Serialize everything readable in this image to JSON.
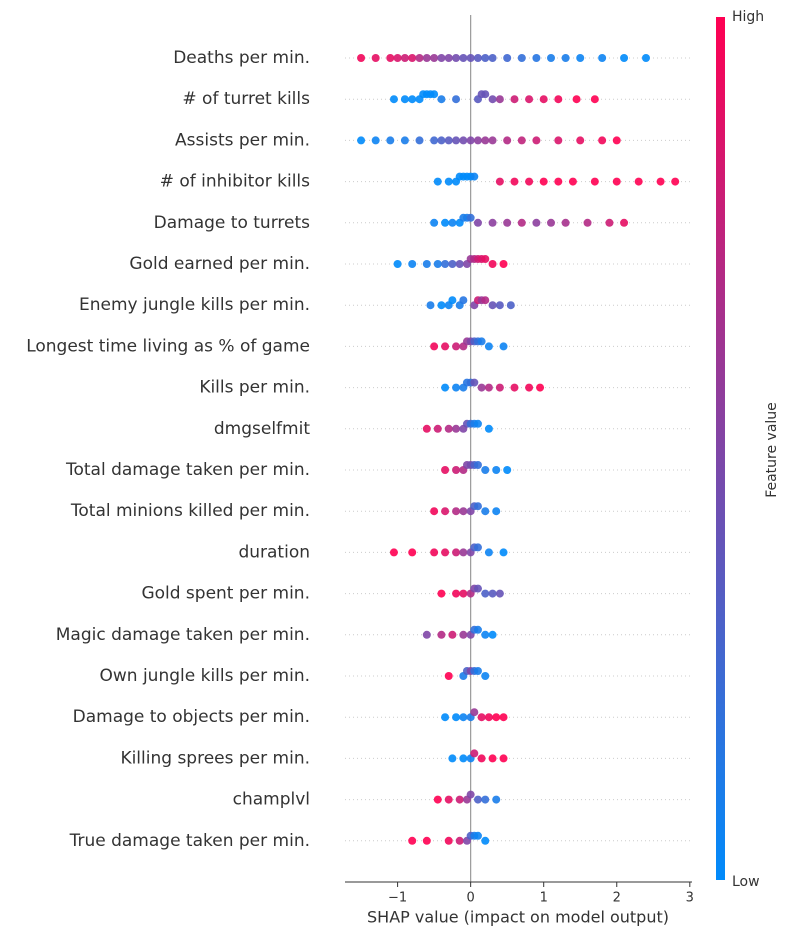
{
  "chart_data": {
    "type": "beeswarm",
    "xlabel": "SHAP value (impact on model output)",
    "colorbar": {
      "label": "Feature value",
      "high": "High",
      "low": "Low",
      "colors": [
        "#008bfb",
        "#ff0052"
      ]
    },
    "xlim": [
      -1.72,
      3.03
    ],
    "xticks": [
      {
        "value": -1,
        "label": "−1"
      },
      0,
      1,
      2,
      3
    ],
    "grid": true,
    "categories": [
      "Deaths per min.",
      "# of turret kills",
      "Assists per min.",
      "# of inhibitor kills",
      "Damage to turrets",
      "Gold earned per min.",
      "Enemy jungle kills per min.",
      "Longest time living as % of game",
      "Kills per min.",
      "dmgselfmit",
      "Total damage taken per min.",
      "Total minions killed per min.",
      "duration",
      "Gold spent per min.",
      "Magic damage taken per min.",
      "Own jungle kills per min.",
      "Damage to objects per min.",
      "Killing sprees per min.",
      "champlvl",
      "True damage taken per min."
    ],
    "points": [
      [
        [
          -1.5,
          0.95
        ],
        [
          -1.3,
          0.9
        ],
        [
          -1.1,
          0.9
        ],
        [
          -1.0,
          0.85
        ],
        [
          -0.9,
          0.8
        ],
        [
          -0.8,
          0.85
        ],
        [
          -0.7,
          0.7
        ],
        [
          -0.6,
          0.6
        ],
        [
          -0.5,
          0.6
        ],
        [
          -0.4,
          0.5
        ],
        [
          -0.3,
          0.5
        ],
        [
          -0.2,
          0.45
        ],
        [
          -0.1,
          0.4
        ],
        [
          0.0,
          0.4
        ],
        [
          0.1,
          0.35
        ],
        [
          0.2,
          0.3
        ],
        [
          0.3,
          0.3
        ],
        [
          0.5,
          0.25
        ],
        [
          0.7,
          0.2
        ],
        [
          0.9,
          0.15
        ],
        [
          1.1,
          0.1
        ],
        [
          1.3,
          0.1
        ],
        [
          1.5,
          0.05
        ],
        [
          1.8,
          0.05
        ],
        [
          2.1,
          0
        ],
        [
          2.4,
          0
        ]
      ],
      [
        [
          -1.05,
          0
        ],
        [
          -0.9,
          0
        ],
        [
          -0.8,
          0
        ],
        [
          -0.7,
          0
        ],
        [
          -0.65,
          0
        ],
        [
          -0.6,
          0
        ],
        [
          -0.55,
          0
        ],
        [
          -0.5,
          0
        ],
        [
          -0.4,
          0.1
        ],
        [
          -0.2,
          0.2
        ],
        [
          0.1,
          0.35
        ],
        [
          0.15,
          0.4
        ],
        [
          0.2,
          0.4
        ],
        [
          0.3,
          0.45
        ],
        [
          0.4,
          0.6
        ],
        [
          0.6,
          0.8
        ],
        [
          0.8,
          0.85
        ],
        [
          1.0,
          0.9
        ],
        [
          1.2,
          0.95
        ],
        [
          1.45,
          1
        ],
        [
          1.7,
          1
        ]
      ],
      [
        [
          -1.5,
          0
        ],
        [
          -1.3,
          0.05
        ],
        [
          -1.1,
          0.1
        ],
        [
          -0.9,
          0.1
        ],
        [
          -0.7,
          0.2
        ],
        [
          -0.5,
          0.25
        ],
        [
          -0.4,
          0.3
        ],
        [
          -0.3,
          0.35
        ],
        [
          -0.2,
          0.4
        ],
        [
          -0.1,
          0.45
        ],
        [
          0,
          0.5
        ],
        [
          0.1,
          0.55
        ],
        [
          0.2,
          0.6
        ],
        [
          0.3,
          0.6
        ],
        [
          0.5,
          0.7
        ],
        [
          0.7,
          0.75
        ],
        [
          0.9,
          0.8
        ],
        [
          1.2,
          0.85
        ],
        [
          1.5,
          0.9
        ],
        [
          1.8,
          0.95
        ],
        [
          2.0,
          1
        ]
      ],
      [
        [
          -0.45,
          0
        ],
        [
          -0.3,
          0
        ],
        [
          -0.2,
          0
        ],
        [
          -0.15,
          0
        ],
        [
          -0.1,
          0
        ],
        [
          -0.05,
          0
        ],
        [
          0,
          0
        ],
        [
          0.05,
          0.05
        ],
        [
          0.4,
          0.9
        ],
        [
          0.6,
          0.95
        ],
        [
          0.8,
          0.95
        ],
        [
          1.0,
          1
        ],
        [
          1.2,
          1
        ],
        [
          1.4,
          1
        ],
        [
          1.7,
          1
        ],
        [
          2.0,
          1
        ],
        [
          2.3,
          1
        ],
        [
          2.6,
          1
        ],
        [
          2.8,
          1
        ]
      ],
      [
        [
          -0.5,
          0.05
        ],
        [
          -0.35,
          0
        ],
        [
          -0.25,
          0.05
        ],
        [
          -0.15,
          0
        ],
        [
          -0.1,
          0.1
        ],
        [
          -0.05,
          0.1
        ],
        [
          0,
          0.2
        ],
        [
          0.1,
          0.5
        ],
        [
          0.3,
          0.55
        ],
        [
          0.5,
          0.6
        ],
        [
          0.7,
          0.7
        ],
        [
          0.9,
          0.55
        ],
        [
          1.1,
          0.6
        ],
        [
          1.3,
          0.65
        ],
        [
          1.6,
          0.7
        ],
        [
          1.9,
          0.8
        ],
        [
          2.1,
          0.9
        ]
      ],
      [
        [
          -1.0,
          0
        ],
        [
          -0.8,
          0.05
        ],
        [
          -0.6,
          0.1
        ],
        [
          -0.45,
          0.1
        ],
        [
          -0.35,
          0.2
        ],
        [
          -0.25,
          0.3
        ],
        [
          -0.15,
          0.4
        ],
        [
          -0.05,
          0.5
        ],
        [
          0,
          0.6
        ],
        [
          0.05,
          0.7
        ],
        [
          0.1,
          0.8
        ],
        [
          0.15,
          0.85
        ],
        [
          0.2,
          0.9
        ],
        [
          0.3,
          0.95
        ],
        [
          0.45,
          1
        ]
      ],
      [
        [
          -0.55,
          0.1
        ],
        [
          -0.4,
          0
        ],
        [
          -0.3,
          0.05
        ],
        [
          -0.25,
          0
        ],
        [
          -0.15,
          0.1
        ],
        [
          -0.1,
          0.15
        ],
        [
          0.05,
          0.5
        ],
        [
          0.1,
          0.8
        ],
        [
          0.15,
          0.6
        ],
        [
          0.2,
          0.7
        ],
        [
          0.3,
          0.4
        ],
        [
          0.4,
          0.35
        ],
        [
          0.55,
          0.3
        ]
      ],
      [
        [
          -0.5,
          0.95
        ],
        [
          -0.35,
          0.9
        ],
        [
          -0.2,
          0.8
        ],
        [
          -0.1,
          0.7
        ],
        [
          -0.05,
          0.6
        ],
        [
          0,
          0.5
        ],
        [
          0.05,
          0.3
        ],
        [
          0.1,
          0.2
        ],
        [
          0.15,
          0.1
        ],
        [
          0.25,
          0.05
        ],
        [
          0.45,
          0.05
        ]
      ],
      [
        [
          -0.35,
          0
        ],
        [
          -0.2,
          0.05
        ],
        [
          -0.1,
          0.1
        ],
        [
          -0.05,
          0.15
        ],
        [
          0,
          0.2
        ],
        [
          0.05,
          0.4
        ],
        [
          0.15,
          0.6
        ],
        [
          0.25,
          0.7
        ],
        [
          0.4,
          0.8
        ],
        [
          0.6,
          0.9
        ],
        [
          0.8,
          0.95
        ],
        [
          0.95,
          1
        ]
      ],
      [
        [
          -0.6,
          0.9
        ],
        [
          -0.45,
          0.8
        ],
        [
          -0.3,
          0.7
        ],
        [
          -0.2,
          0.6
        ],
        [
          -0.1,
          0.5
        ],
        [
          -0.05,
          0.4
        ],
        [
          0,
          0.2
        ],
        [
          0.05,
          0.1
        ],
        [
          0.1,
          0.05
        ],
        [
          0.25,
          0
        ]
      ],
      [
        [
          -0.35,
          0.9
        ],
        [
          -0.2,
          0.8
        ],
        [
          -0.1,
          0.7
        ],
        [
          -0.05,
          0.5
        ],
        [
          0,
          0.45
        ],
        [
          0.05,
          0.3
        ],
        [
          0.1,
          0.2
        ],
        [
          0.2,
          0.1
        ],
        [
          0.35,
          0.05
        ],
        [
          0.5,
          0
        ]
      ],
      [
        [
          -0.5,
          0.95
        ],
        [
          -0.35,
          0.85
        ],
        [
          -0.2,
          0.7
        ],
        [
          -0.1,
          0.6
        ],
        [
          0,
          0.5
        ],
        [
          0.05,
          0.3
        ],
        [
          0.1,
          0.2
        ],
        [
          0.2,
          0.1
        ],
        [
          0.35,
          0.05
        ]
      ],
      [
        [
          -1.05,
          1
        ],
        [
          -0.8,
          1
        ],
        [
          -0.5,
          0.95
        ],
        [
          -0.35,
          0.9
        ],
        [
          -0.2,
          0.8
        ],
        [
          -0.1,
          0.6
        ],
        [
          0,
          0.5
        ],
        [
          0.05,
          0.3
        ],
        [
          0.1,
          0.2
        ],
        [
          0.25,
          0.05
        ],
        [
          0.45,
          0
        ]
      ],
      [
        [
          -0.4,
          1
        ],
        [
          -0.2,
          0.95
        ],
        [
          -0.1,
          0.9
        ],
        [
          0,
          0.7
        ],
        [
          0.05,
          0.5
        ],
        [
          0.1,
          0.4
        ],
        [
          0.2,
          0.3
        ],
        [
          0.3,
          0.35
        ],
        [
          0.4,
          0.4
        ]
      ],
      [
        [
          -0.6,
          0.5
        ],
        [
          -0.4,
          0.7
        ],
        [
          -0.25,
          0.8
        ],
        [
          -0.1,
          0.6
        ],
        [
          0,
          0.5
        ],
        [
          0.05,
          0.2
        ],
        [
          0.1,
          0.1
        ],
        [
          0.2,
          0.05
        ],
        [
          0.3,
          0
        ]
      ],
      [
        [
          -0.3,
          1
        ],
        [
          -0.1,
          0.1
        ],
        [
          -0.05,
          0.3
        ],
        [
          0,
          0.5
        ],
        [
          0.05,
          0.2
        ],
        [
          0.1,
          0.1
        ],
        [
          0.2,
          0.05
        ]
      ],
      [
        [
          -0.35,
          0
        ],
        [
          -0.2,
          0
        ],
        [
          -0.1,
          0.05
        ],
        [
          0,
          0.1
        ],
        [
          0.05,
          0.6
        ],
        [
          0.15,
          0.9
        ],
        [
          0.25,
          0.95
        ],
        [
          0.35,
          1
        ],
        [
          0.45,
          1
        ]
      ],
      [
        [
          -0.25,
          0
        ],
        [
          -0.1,
          0
        ],
        [
          0,
          0.05
        ],
        [
          0.05,
          0.8
        ],
        [
          0.15,
          0.95
        ],
        [
          0.3,
          1
        ],
        [
          0.45,
          1
        ]
      ],
      [
        [
          -0.45,
          1
        ],
        [
          -0.3,
          0.9
        ],
        [
          -0.15,
          0.8
        ],
        [
          -0.05,
          0.6
        ],
        [
          0,
          0.5
        ],
        [
          0.1,
          0.3
        ],
        [
          0.2,
          0.2
        ],
        [
          0.35,
          0.1
        ]
      ],
      [
        [
          -0.8,
          1
        ],
        [
          -0.6,
          1
        ],
        [
          -0.3,
          0.95
        ],
        [
          -0.15,
          0.8
        ],
        [
          -0.05,
          0.5
        ],
        [
          0,
          0.3
        ],
        [
          0.05,
          0.1
        ],
        [
          0.1,
          0.05
        ],
        [
          0.2,
          0
        ]
      ]
    ]
  }
}
